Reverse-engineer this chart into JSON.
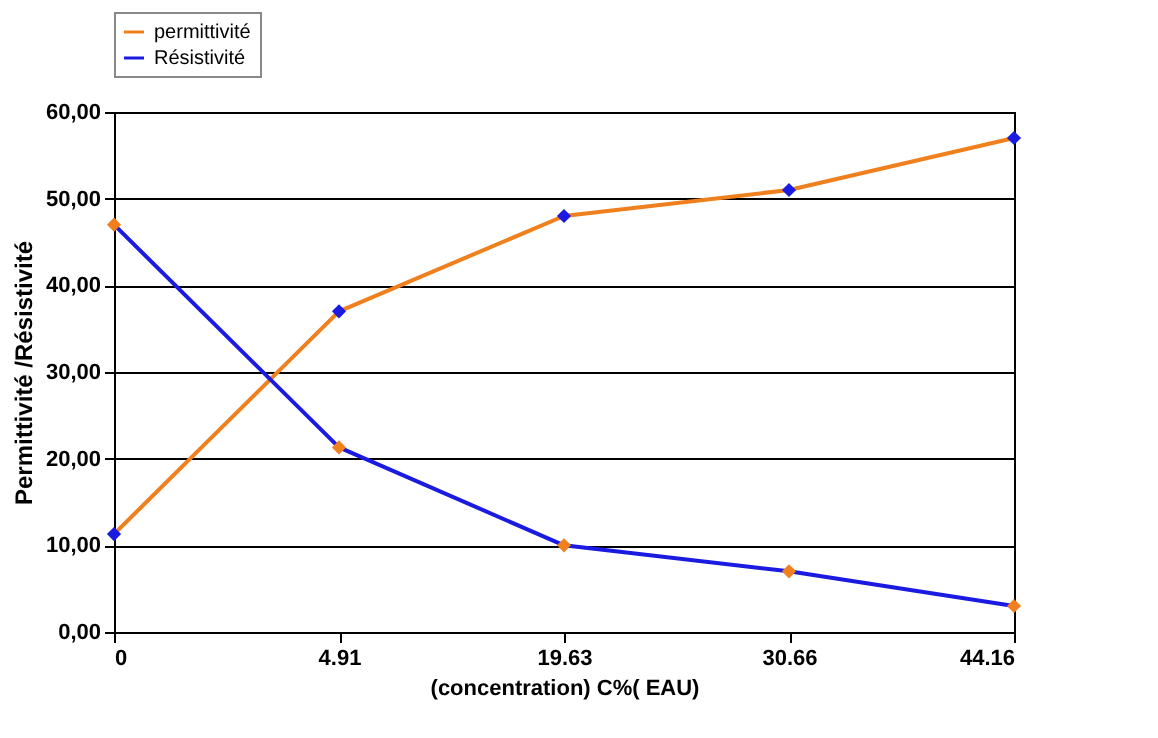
{
  "chart_data": {
    "type": "line",
    "xlabel": "(concentration) C%( EAU)",
    "ylabel": "Permittivité /Résistivité",
    "categories": [
      "0",
      "4.91",
      "19.63",
      "30.66",
      "44.16"
    ],
    "series": [
      {
        "name": "permittivité",
        "color": "#f07f1e",
        "values": [
          11.3,
          37,
          48,
          51,
          57
        ]
      },
      {
        "name": "Résistivité",
        "color": "#1a1ae0",
        "values": [
          47,
          21.3,
          10,
          7,
          3
        ]
      }
    ],
    "ylim": [
      0,
      60
    ],
    "yticks": [
      {
        "value": 0,
        "label": "0,00"
      },
      {
        "value": 10,
        "label": "10,00"
      },
      {
        "value": 20,
        "label": "20,00"
      },
      {
        "value": 30,
        "label": "30,00"
      },
      {
        "value": 40,
        "label": "40,00"
      },
      {
        "value": 50,
        "label": "50,00"
      },
      {
        "value": 60,
        "label": "60,00"
      }
    ],
    "grid": "y",
    "legend": "top",
    "marker": "diamond",
    "line_style": "solid"
  }
}
